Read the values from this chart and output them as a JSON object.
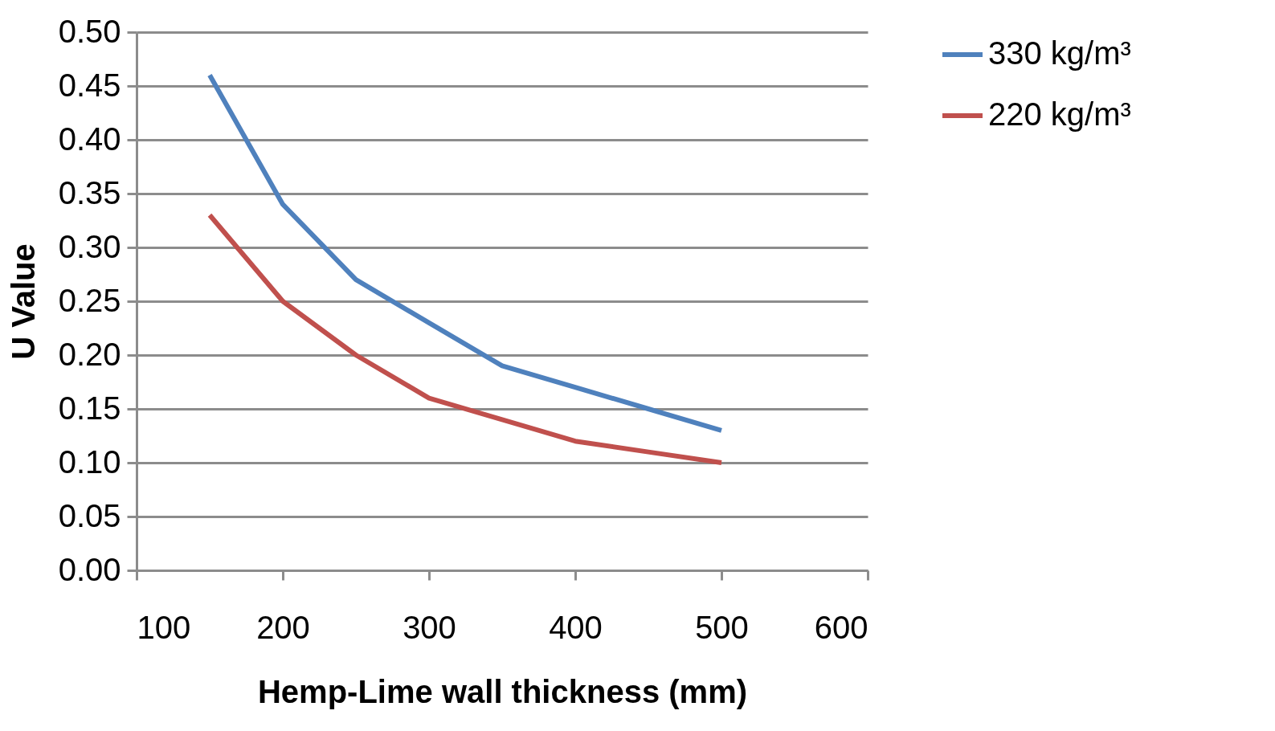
{
  "chart_data": {
    "type": "line",
    "xlabel": "Hemp-Lime wall thickness (mm)",
    "ylabel": "U Value",
    "x": [
      150,
      200,
      250,
      300,
      350,
      400,
      450,
      500
    ],
    "series": [
      {
        "name": "330 kg/m³",
        "color": "#4f81bd",
        "values": [
          0.46,
          0.34,
          0.27,
          0.23,
          0.19,
          0.17,
          0.15,
          0.13
        ]
      },
      {
        "name": "220 kg/m³",
        "color": "#c0504d",
        "values": [
          0.33,
          0.25,
          0.2,
          0.16,
          0.14,
          0.12,
          0.11,
          0.1
        ]
      }
    ],
    "xlim": [
      100,
      600
    ],
    "xticks": [
      100,
      200,
      300,
      400,
      500,
      600
    ],
    "ylim": [
      0,
      0.5
    ],
    "yticks": [
      {
        "value": 0,
        "label": "0.00"
      },
      {
        "value": 0.05,
        "label": "0.05"
      },
      {
        "value": 0.1,
        "label": "0.10"
      },
      {
        "value": 0.15,
        "label": "0.15"
      },
      {
        "value": 0.2,
        "label": "0.20"
      },
      {
        "value": 0.25,
        "label": "0.25"
      },
      {
        "value": 0.3,
        "label": "0.30"
      },
      {
        "value": 0.35,
        "label": "0.35"
      },
      {
        "value": 0.4,
        "label": "0.40"
      },
      {
        "value": 0.45,
        "label": "0.45"
      },
      {
        "value": 0.5,
        "label": "0.50"
      }
    ],
    "grid": "y",
    "legend": "right"
  }
}
